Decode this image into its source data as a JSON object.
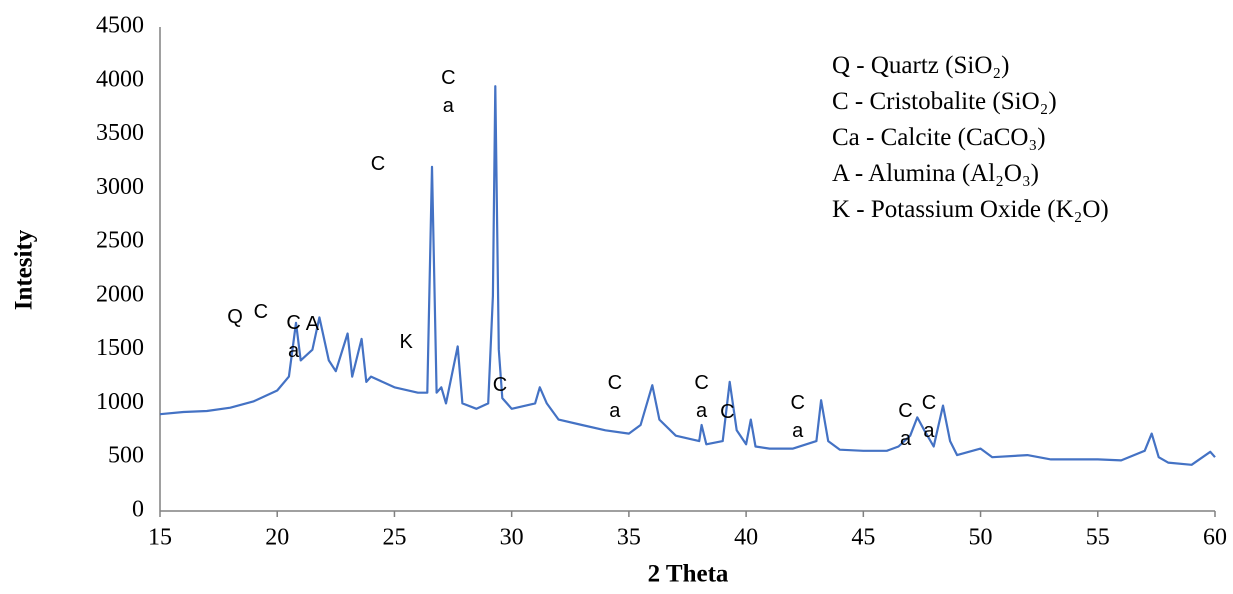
{
  "chart_data": {
    "type": "line",
    "xlabel": "2 Theta",
    "ylabel": "Intesity",
    "xlim": [
      15,
      60
    ],
    "xticks": [
      15,
      20,
      25,
      30,
      35,
      40,
      45,
      50,
      55,
      60
    ],
    "ylim": [
      0,
      4500
    ],
    "yticks": [
      0,
      500,
      1000,
      1500,
      2000,
      2500,
      3000,
      3500,
      4000,
      4500
    ],
    "grid": false,
    "legend_entries": [
      "Q - Quartz (SiO₂)",
      "C - Cristobalite  (SiO₂)",
      "Ca - Calcite (CaCO₃)",
      "A - Alumina (Al₂O₃)",
      "K - Potassium Oxide (K₂O)"
    ],
    "series": [
      {
        "color": "#4472c4",
        "x": [
          15,
          16,
          17,
          18,
          19,
          20,
          20.5,
          20.8,
          21,
          21.5,
          21.8,
          22.2,
          22.5,
          23,
          23.2,
          23.6,
          23.8,
          24,
          25,
          26,
          26.4,
          26.6,
          26.8,
          27,
          27.2,
          27.7,
          27.9,
          28.5,
          29,
          29.2,
          29.3,
          29.45,
          29.6,
          30,
          31,
          31.2,
          31.5,
          32,
          33,
          34,
          35,
          35.5,
          36,
          36.3,
          37,
          38,
          38.1,
          38.3,
          39,
          39.3,
          39.6,
          40,
          40.2,
          40.4,
          41,
          42,
          43,
          43.2,
          43.5,
          44,
          45,
          46,
          46.5,
          47,
          47.3,
          47.6,
          48,
          48.4,
          48.7,
          49,
          50,
          50.5,
          52,
          53,
          55,
          56,
          57,
          57.3,
          57.6,
          58,
          59,
          59.8,
          60
        ],
        "values": [
          900,
          920,
          930,
          960,
          1020,
          1120,
          1250,
          1750,
          1400,
          1500,
          1800,
          1400,
          1300,
          1650,
          1250,
          1600,
          1200,
          1250,
          1150,
          1100,
          1100,
          3200,
          1100,
          1150,
          1000,
          1530,
          1000,
          950,
          1000,
          2000,
          3950,
          1500,
          1050,
          950,
          1000,
          1150,
          1000,
          850,
          800,
          750,
          720,
          800,
          1170,
          850,
          700,
          650,
          800,
          620,
          650,
          1200,
          750,
          620,
          850,
          600,
          580,
          580,
          650,
          1030,
          650,
          570,
          560,
          560,
          600,
          700,
          870,
          750,
          600,
          980,
          650,
          520,
          580,
          500,
          520,
          480,
          480,
          470,
          560,
          720,
          500,
          450,
          430,
          550,
          500
        ]
      }
    ],
    "annotations": [
      {
        "text": "Q",
        "x": 18.2,
        "y": 1800
      },
      {
        "text": "C",
        "x": 19.3,
        "y": 1850
      },
      {
        "text": "Ca",
        "x": 20.7,
        "y": 1750
      },
      {
        "text": "A",
        "x": 21.5,
        "y": 1740
      },
      {
        "text": "K",
        "x": 25.5,
        "y": 1570
      },
      {
        "text": "C",
        "x": 24.3,
        "y": 3230
      },
      {
        "text": "Ca",
        "x": 27.3,
        "y": 4030
      },
      {
        "text": "C",
        "x": 29.5,
        "y": 1170
      },
      {
        "text": "Ca",
        "x": 34.4,
        "y": 1190
      },
      {
        "text": "Ca",
        "x": 38.1,
        "y": 1190
      },
      {
        "text": "C",
        "x": 39.2,
        "y": 920
      },
      {
        "text": "Ca",
        "x": 42.2,
        "y": 1000
      },
      {
        "text": "Ca",
        "x": 46.8,
        "y": 930
      },
      {
        "text": "Ca",
        "x": 47.8,
        "y": 1000
      }
    ]
  }
}
